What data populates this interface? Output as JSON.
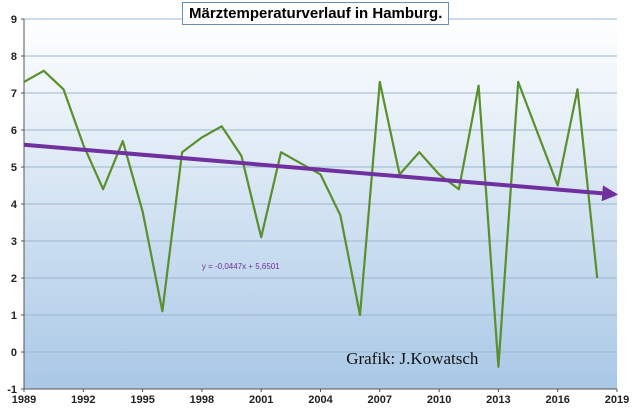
{
  "chart_data": {
    "type": "line",
    "title": "Märztemperaturverlauf in Hamburg.",
    "xlim": [
      1989,
      2019
    ],
    "ylim": [
      -1,
      9
    ],
    "x_ticks": [
      "1989",
      "1992",
      "1995",
      "1998",
      "2001",
      "2004",
      "2007",
      "2010",
      "2013",
      "2016",
      "2019"
    ],
    "y_ticks": [
      "-1",
      "0",
      "1",
      "2",
      "3",
      "4",
      "5",
      "6",
      "7",
      "8",
      "9"
    ],
    "grid": true,
    "series": [
      {
        "color": "#5a8f2e",
        "x": [
          1989,
          1990,
          1991,
          1992,
          1993,
          1994,
          1995,
          1996,
          1997,
          1998,
          1999,
          2000,
          2001,
          2002,
          2003,
          2004,
          2005,
          2006,
          2007,
          2008,
          2009,
          2010,
          2011,
          2012,
          2013,
          2014,
          2015,
          2016,
          2017,
          2018
        ],
        "y": [
          7.3,
          7.6,
          7.1,
          5.6,
          4.4,
          5.7,
          3.8,
          1.1,
          5.4,
          5.8,
          6.1,
          5.3,
          3.1,
          5.4,
          5.1,
          4.8,
          3.7,
          1.0,
          7.3,
          4.8,
          5.4,
          4.8,
          4.4,
          7.2,
          -0.4,
          7.3,
          5.9,
          4.5,
          7.1,
          2.0
        ]
      }
    ],
    "trendline": {
      "color": "#7030a0",
      "x": [
        1989,
        2019
      ],
      "y": [
        5.6,
        4.26
      ],
      "equation": "y = -0,0447x + 5,6501"
    },
    "annotation": "Grafik:  J.Kowatsch"
  }
}
